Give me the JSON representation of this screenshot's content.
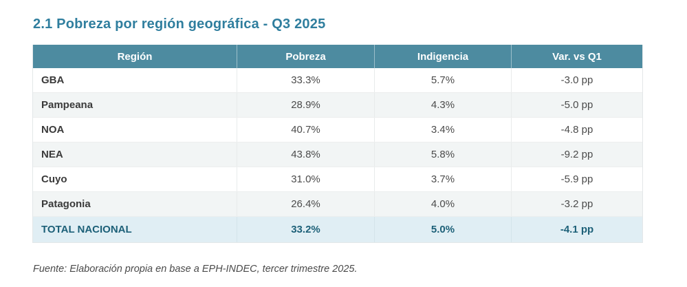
{
  "title": "2.1 Pobreza por región geográfica - Q3 2025",
  "footer": "Fuente: Elaboración propia en base a EPH-INDEC, tercer trimestre 2025.",
  "colors": {
    "title_teal": "#2f7e9e",
    "header_bg": "#4d8ba0",
    "header_text": "#ffffff",
    "alt_row_bg": "#f2f5f5",
    "total_row_bg": "#e0eef4",
    "total_row_text": "#1d6078",
    "improvement_green": "#5e9e62"
  },
  "table": {
    "columns": [
      "Región",
      "Pobreza",
      "Indigencia",
      "Var. vs Q1"
    ],
    "rows": [
      {
        "region": "GBA",
        "pobreza": "33.3%",
        "indigencia": "5.7%",
        "var": "-3.0 pp",
        "var_green": false
      },
      {
        "region": "Pampeana",
        "pobreza": "28.9%",
        "indigencia": "4.3%",
        "var": "-5.0 pp",
        "var_green": false
      },
      {
        "region": "NOA",
        "pobreza": "40.7%",
        "indigencia": "3.4%",
        "var": "-4.8 pp",
        "var_green": false
      },
      {
        "region": "NEA",
        "pobreza": "43.8%",
        "indigencia": "5.8%",
        "var": "-9.2 pp",
        "var_green": false
      },
      {
        "region": "Cuyo",
        "pobreza": "31.0%",
        "indigencia": "3.7%",
        "var": "-5.9 pp",
        "var_green": true
      },
      {
        "region": "Patagonia",
        "pobreza": "26.4%",
        "indigencia": "4.0%",
        "var": "-3.2 pp",
        "var_green": false
      }
    ],
    "total_row": {
      "region": "TOTAL NACIONAL",
      "pobreza": "33.2%",
      "indigencia": "5.0%",
      "var": "-4.1 pp"
    }
  },
  "chart_data": {
    "type": "table",
    "title": "2.1 Pobreza por región geográfica - Q3 2025",
    "columns": [
      "Región",
      "Pobreza",
      "Indigencia",
      "Var. vs Q1"
    ],
    "units": {
      "pobreza": "%",
      "indigencia": "%",
      "var": "pp"
    },
    "rows": [
      [
        "GBA",
        33.3,
        5.7,
        -3.0
      ],
      [
        "Pampeana",
        28.9,
        4.3,
        -5.0
      ],
      [
        "NOA",
        40.7,
        3.4,
        -4.8
      ],
      [
        "NEA",
        43.8,
        5.8,
        -9.2
      ],
      [
        "Cuyo",
        31.0,
        3.7,
        -5.9
      ],
      [
        "Patagonia",
        26.4,
        4.0,
        -3.2
      ],
      [
        "TOTAL NACIONAL",
        33.2,
        5.0,
        -4.1
      ]
    ],
    "source": "Fuente: Elaboración propia en base a EPH-INDEC, tercer trimestre 2025."
  }
}
